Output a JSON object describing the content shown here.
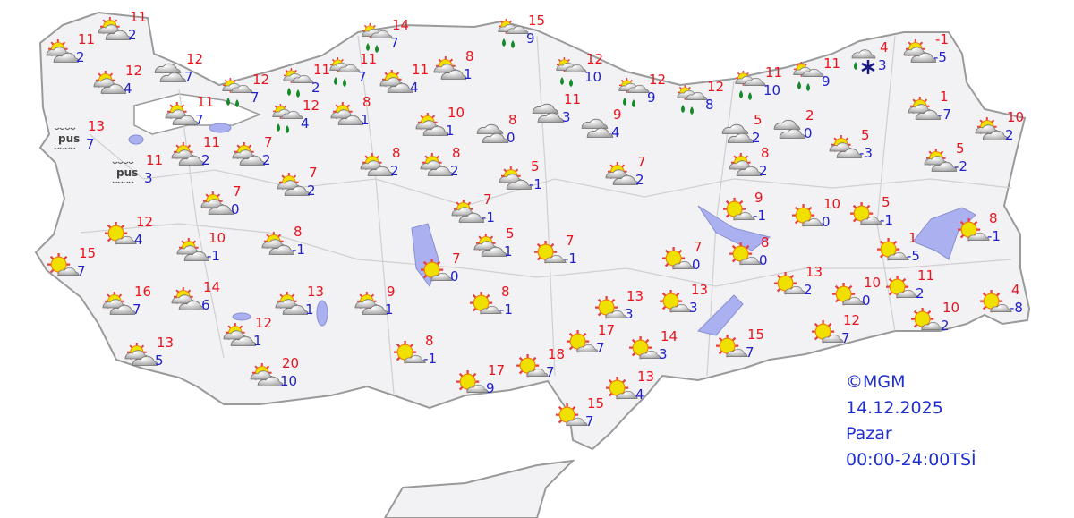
{
  "colors": {
    "max": "#e8141e",
    "min": "#2020d0",
    "land": "#f2f2f4",
    "border": "#9a9a9a",
    "water": "#aab0f0",
    "legend": "#2030d0",
    "rain": "#148a28",
    "snow": "#1a1a80"
  },
  "legend": {
    "copyright": "©MGM",
    "date": "14.12.2025",
    "day": "Pazar",
    "period": "00:00-24:00TSİ"
  },
  "fog_label": "pus",
  "stations": [
    {
      "icon": "partly-cloudy",
      "max": "11",
      "min": "2"
    },
    {
      "icon": "partly-cloudy",
      "max": "11",
      "min": "2"
    },
    {
      "icon": "partly-cloudy",
      "max": "12",
      "min": "4"
    },
    {
      "icon": "cloudy",
      "max": "12",
      "min": "7"
    },
    {
      "icon": "rain",
      "max": "12",
      "min": "7"
    },
    {
      "icon": "rain",
      "max": "11",
      "min": "2"
    },
    {
      "icon": "rain",
      "max": "11",
      "min": "7"
    },
    {
      "icon": "rain",
      "max": "14",
      "min": "7"
    },
    {
      "icon": "partly-cloudy",
      "max": "11",
      "min": "4"
    },
    {
      "icon": "partly-cloudy",
      "max": "8",
      "min": "1"
    },
    {
      "icon": "rain",
      "max": "15",
      "min": "9"
    },
    {
      "icon": "rain",
      "max": "12",
      "min": "10"
    },
    {
      "icon": "rain",
      "max": "12",
      "min": "9"
    },
    {
      "icon": "rain",
      "max": "12",
      "min": "8"
    },
    {
      "icon": "rain",
      "max": "11",
      "min": "10"
    },
    {
      "icon": "rain",
      "max": "11",
      "min": "9"
    },
    {
      "icon": "rain-snow",
      "max": "4",
      "min": "3"
    },
    {
      "icon": "partly-cloudy",
      "max": "-1",
      "min": "-5"
    },
    {
      "icon": "partly-cloudy",
      "max": "11",
      "min": "7"
    },
    {
      "icon": "rain",
      "max": "12",
      "min": "4"
    },
    {
      "icon": "partly-cloudy",
      "max": "8",
      "min": "1"
    },
    {
      "icon": "partly-cloudy",
      "max": "10",
      "min": "1"
    },
    {
      "icon": "cloudy",
      "max": "8",
      "min": "0"
    },
    {
      "icon": "cloudy",
      "max": "11",
      "min": "3"
    },
    {
      "icon": "cloudy",
      "max": "9",
      "min": "4"
    },
    {
      "icon": "cloudy",
      "max": "5",
      "min": "2"
    },
    {
      "icon": "cloudy",
      "max": "2",
      "min": "0"
    },
    {
      "icon": "partly-cloudy",
      "max": "5",
      "min": "-3"
    },
    {
      "icon": "partly-cloudy",
      "max": "1",
      "min": "-7"
    },
    {
      "icon": "partly-cloudy",
      "max": "10",
      "min": "2"
    },
    {
      "icon": "fog",
      "max": "13",
      "min": "7"
    },
    {
      "icon": "fog",
      "max": "11",
      "min": "3"
    },
    {
      "icon": "partly-cloudy",
      "max": "11",
      "min": "2"
    },
    {
      "icon": "partly-cloudy",
      "max": "7",
      "min": "2"
    },
    {
      "icon": "partly-cloudy",
      "max": "8",
      "min": "2"
    },
    {
      "icon": "partly-cloudy",
      "max": "8",
      "min": "2"
    },
    {
      "icon": "partly-cloudy",
      "max": "5",
      "min": "-1"
    },
    {
      "icon": "partly-cloudy",
      "max": "7",
      "min": "2"
    },
    {
      "icon": "partly-cloudy",
      "max": "8",
      "min": "2"
    },
    {
      "icon": "partly-cloudy",
      "max": "5",
      "min": "-2"
    },
    {
      "icon": "partly-cloudy",
      "max": "7",
      "min": "0"
    },
    {
      "icon": "partly-cloudy",
      "max": "7",
      "min": "2"
    },
    {
      "icon": "partly-cloudy",
      "max": "7",
      "min": "-1"
    },
    {
      "icon": "mostly-sunny",
      "max": "9",
      "min": "-1"
    },
    {
      "icon": "mostly-sunny",
      "max": "10",
      "min": "0"
    },
    {
      "icon": "mostly-sunny",
      "max": "5",
      "min": "-1"
    },
    {
      "icon": "mostly-sunny",
      "max": "8",
      "min": "-1"
    },
    {
      "icon": "mostly-sunny",
      "max": "12",
      "min": "4"
    },
    {
      "icon": "partly-cloudy",
      "max": "10",
      "min": "-1"
    },
    {
      "icon": "partly-cloudy",
      "max": "8",
      "min": "-1"
    },
    {
      "icon": "partly-cloudy",
      "max": "5",
      "min": "1"
    },
    {
      "icon": "mostly-sunny",
      "max": "7",
      "min": "-1"
    },
    {
      "icon": "mostly-sunny",
      "max": "15",
      "min": "7"
    },
    {
      "icon": "mostly-sunny",
      "max": "7",
      "min": "0"
    },
    {
      "icon": "mostly-sunny",
      "max": "7",
      "min": "0"
    },
    {
      "icon": "mostly-sunny",
      "max": "8",
      "min": "0"
    },
    {
      "icon": "mostly-sunny",
      "max": "1",
      "min": "-5"
    },
    {
      "icon": "partly-cloudy",
      "max": "16",
      "min": "7"
    },
    {
      "icon": "partly-cloudy",
      "max": "14",
      "min": "6"
    },
    {
      "icon": "partly-cloudy",
      "max": "13",
      "min": "1"
    },
    {
      "icon": "partly-cloudy",
      "max": "9",
      "min": "1"
    },
    {
      "icon": "mostly-sunny",
      "max": "8",
      "min": "-1"
    },
    {
      "icon": "mostly-sunny",
      "max": "13",
      "min": "3"
    },
    {
      "icon": "mostly-sunny",
      "max": "13",
      "min": "3"
    },
    {
      "icon": "mostly-sunny",
      "max": "13",
      "min": "2"
    },
    {
      "icon": "mostly-sunny",
      "max": "10",
      "min": "0"
    },
    {
      "icon": "mostly-sunny",
      "max": "11",
      "min": "2"
    },
    {
      "icon": "mostly-sunny",
      "max": "4",
      "min": "-8"
    },
    {
      "icon": "partly-cloudy",
      "max": "12",
      "min": "1"
    },
    {
      "icon": "partly-cloudy",
      "max": "13",
      "min": "5"
    },
    {
      "icon": "mostly-sunny",
      "max": "8",
      "min": "-1"
    },
    {
      "icon": "mostly-sunny",
      "max": "17",
      "min": "7"
    },
    {
      "icon": "mostly-sunny",
      "max": "14",
      "min": "3"
    },
    {
      "icon": "mostly-sunny",
      "max": "15",
      "min": "7"
    },
    {
      "icon": "mostly-sunny",
      "max": "12",
      "min": "7"
    },
    {
      "icon": "mostly-sunny",
      "max": "10",
      "min": "2"
    },
    {
      "icon": "partly-cloudy",
      "max": "20",
      "min": "10"
    },
    {
      "icon": "mostly-sunny",
      "max": "17",
      "min": "9"
    },
    {
      "icon": "mostly-sunny",
      "max": "18",
      "min": "7"
    },
    {
      "icon": "mostly-sunny",
      "max": "13",
      "min": "4"
    },
    {
      "icon": "mostly-sunny",
      "max": "15",
      "min": "7"
    }
  ]
}
